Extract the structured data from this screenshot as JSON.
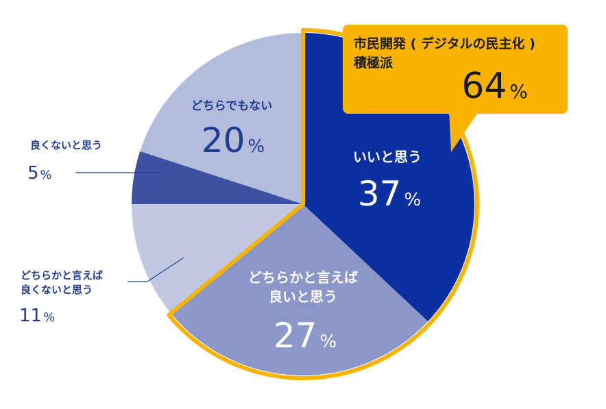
{
  "chart_data": {
    "type": "pie",
    "slices": [
      {
        "label": "いいと思う",
        "value": 37,
        "display": "37",
        "color": "#0a2fa0",
        "text_color": "#ffffff"
      },
      {
        "label_lines": [
          "どちらかと言えば",
          "良いと思う"
        ],
        "value": 27,
        "display": "27",
        "color": "#8b97c8",
        "text_color": "#ffffff"
      },
      {
        "label_lines": [
          "どちらかと言えば",
          "良くないと思う"
        ],
        "value": 11,
        "display": "11",
        "color": "#c2c8e2",
        "text_color": "#1f3a93"
      },
      {
        "label": "良くないと思う",
        "value": 5,
        "display": "5",
        "color": "#3e51a0",
        "text_color": "#1f3a93"
      },
      {
        "label": "どちらでもない",
        "value": 20,
        "display": "20",
        "color": "#b4bcdc",
        "text_color": "#1f3a93"
      }
    ],
    "unit": "%",
    "highlight": {
      "title_line1": "市民開発 ( デジタルの民主化 )",
      "title_line2": "積極派",
      "value": "64",
      "unit": "%",
      "color": "#f8b400"
    }
  }
}
